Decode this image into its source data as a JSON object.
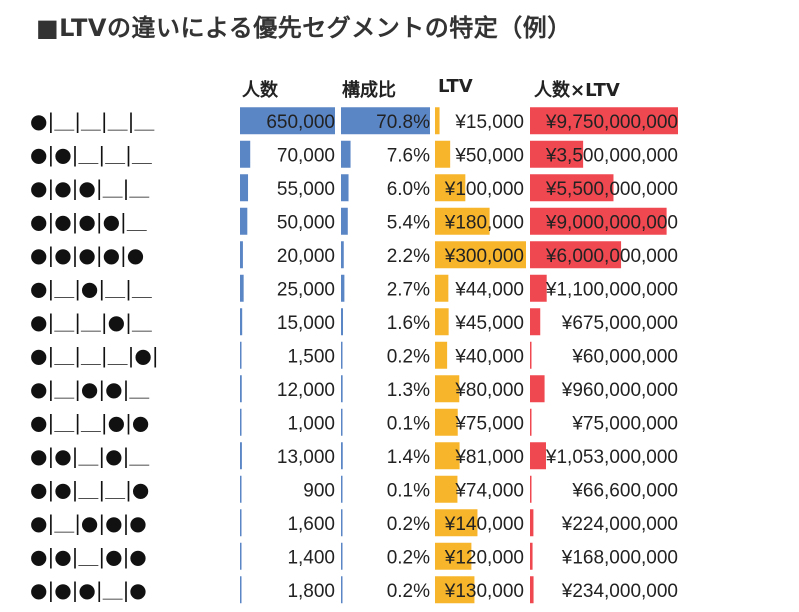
{
  "title": "■LTVの違いによる優先セグメントの特定（例）",
  "colors": {
    "count": "#5b86c5",
    "ratio": "#5b86c5",
    "ltv": "#f7b52b",
    "total": "#f04850"
  },
  "chart_data": {
    "type": "table",
    "columns": [
      "",
      "人数",
      "構成比",
      "LTV",
      "人数×LTV"
    ],
    "rows": [
      {
        "pattern": "●|＿|＿|＿|＿",
        "count": 650000,
        "count_label": "650,000",
        "ratio": 70.8,
        "ratio_label": "70.8%",
        "ltv": 15000,
        "ltv_label": "¥15,000",
        "total": 9750000000,
        "total_label": "¥9,750,000,000"
      },
      {
        "pattern": "●|●|＿|＿|＿",
        "count": 70000,
        "count_label": "70,000",
        "ratio": 7.6,
        "ratio_label": "7.6%",
        "ltv": 50000,
        "ltv_label": "¥50,000",
        "total": 3500000000,
        "total_label": "¥3,500,000,000"
      },
      {
        "pattern": "●|●|●|＿|＿",
        "count": 55000,
        "count_label": "55,000",
        "ratio": 6.0,
        "ratio_label": "6.0%",
        "ltv": 100000,
        "ltv_label": "¥100,000",
        "total": 5500000000,
        "total_label": "¥5,500,000,000"
      },
      {
        "pattern": "●|●|●|●|＿",
        "count": 50000,
        "count_label": "50,000",
        "ratio": 5.4,
        "ratio_label": "5.4%",
        "ltv": 180000,
        "ltv_label": "¥180,000",
        "total": 9000000000,
        "total_label": "¥9,000,000,000"
      },
      {
        "pattern": "●|●|●|●|●",
        "count": 20000,
        "count_label": "20,000",
        "ratio": 2.2,
        "ratio_label": "2.2%",
        "ltv": 300000,
        "ltv_label": "¥300,000",
        "total": 6000000000,
        "total_label": "¥6,000,000,000"
      },
      {
        "pattern": "●|＿|●|＿|＿",
        "count": 25000,
        "count_label": "25,000",
        "ratio": 2.7,
        "ratio_label": "2.7%",
        "ltv": 44000,
        "ltv_label": "¥44,000",
        "total": 1100000000,
        "total_label": "¥1,100,000,000"
      },
      {
        "pattern": "●|＿|＿|●|＿",
        "count": 15000,
        "count_label": "15,000",
        "ratio": 1.6,
        "ratio_label": "1.6%",
        "ltv": 45000,
        "ltv_label": "¥45,000",
        "total": 675000000,
        "total_label": "¥675,000,000"
      },
      {
        "pattern": "●|＿|＿|＿|●|",
        "count": 1500,
        "count_label": "1,500",
        "ratio": 0.2,
        "ratio_label": "0.2%",
        "ltv": 40000,
        "ltv_label": "¥40,000",
        "total": 60000000,
        "total_label": "¥60,000,000"
      },
      {
        "pattern": "●|＿|●|●|＿",
        "count": 12000,
        "count_label": "12,000",
        "ratio": 1.3,
        "ratio_label": "1.3%",
        "ltv": 80000,
        "ltv_label": "¥80,000",
        "total": 960000000,
        "total_label": "¥960,000,000"
      },
      {
        "pattern": "●|＿|＿|●|●",
        "count": 1000,
        "count_label": "1,000",
        "ratio": 0.1,
        "ratio_label": "0.1%",
        "ltv": 75000,
        "ltv_label": "¥75,000",
        "total": 75000000,
        "total_label": "¥75,000,000"
      },
      {
        "pattern": "●|●|＿|●|＿",
        "count": 13000,
        "count_label": "13,000",
        "ratio": 1.4,
        "ratio_label": "1.4%",
        "ltv": 81000,
        "ltv_label": "¥81,000",
        "total": 1053000000,
        "total_label": "¥1,053,000,000"
      },
      {
        "pattern": "●|●|＿|＿|●",
        "count": 900,
        "count_label": "900",
        "ratio": 0.1,
        "ratio_label": "0.1%",
        "ltv": 74000,
        "ltv_label": "¥74,000",
        "total": 66600000,
        "total_label": "¥66,600,000"
      },
      {
        "pattern": "●|＿|●|●|●",
        "count": 1600,
        "count_label": "1,600",
        "ratio": 0.2,
        "ratio_label": "0.2%",
        "ltv": 140000,
        "ltv_label": "¥140,000",
        "total": 224000000,
        "total_label": "¥224,000,000"
      },
      {
        "pattern": "●|●|＿|●|●",
        "count": 1400,
        "count_label": "1,400",
        "ratio": 0.2,
        "ratio_label": "0.2%",
        "ltv": 120000,
        "ltv_label": "¥120,000",
        "total": 168000000,
        "total_label": "¥168,000,000"
      },
      {
        "pattern": "●|●|●|＿|●",
        "count": 1800,
        "count_label": "1,800",
        "ratio": 0.2,
        "ratio_label": "0.2%",
        "ltv": 130000,
        "ltv_label": "¥130,000",
        "total": 234000000,
        "total_label": "¥234,000,000"
      }
    ]
  }
}
